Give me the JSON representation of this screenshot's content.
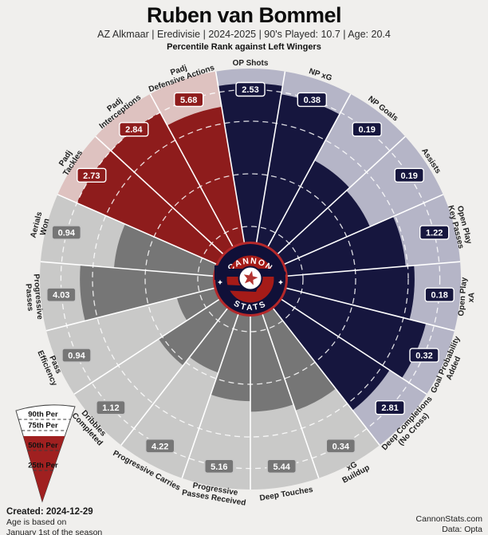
{
  "header": {
    "title": "Ruben van Bommel",
    "subtitle": "AZ Alkmaar  | Eredivisie | 2024-2025 | 90's Played: 10.7 | Age: 20.4",
    "context": "Percentile Rank against Left Wingers"
  },
  "chart_data": {
    "type": "pizza",
    "title": "Percentile Rank against Left Wingers",
    "groups": {
      "attacking": {
        "color": "#16163e",
        "light": "#b5b5c7",
        "box_border": "#ffffff"
      },
      "possession": {
        "color": "#767676",
        "light": "#c9c9c8",
        "box_border": "#c6c6c6"
      },
      "defending": {
        "color": "#8e1c1c",
        "light": "#dec2c0",
        "box_border": "#ffffff"
      }
    },
    "rings_percentiles": [
      25,
      50,
      75,
      90
    ],
    "slices": [
      {
        "label": "OP Shots",
        "value": "2.53",
        "percentile": 93,
        "group": "attacking"
      },
      {
        "label": "NP xG",
        "value": "0.38",
        "percentile": 89,
        "group": "attacking"
      },
      {
        "label": "NP Goals",
        "value": "0.19",
        "percentile": 64,
        "group": "attacking"
      },
      {
        "label": "Assists",
        "value": "0.19",
        "percentile": 62,
        "group": "attacking"
      },
      {
        "label": "Open Play\nKey Passes",
        "value": "1.22",
        "percentile": 74,
        "group": "attacking"
      },
      {
        "label": "Open Play\nxA",
        "value": "0.18",
        "percentile": 78,
        "group": "attacking"
      },
      {
        "label": "Goal Probability\nAdded",
        "value": "0.32",
        "percentile": 86,
        "group": "attacking"
      },
      {
        "label": "Deep Completions\n(No Cross)",
        "value": "2.81",
        "percentile": 79,
        "group": "attacking"
      },
      {
        "label": "xG\nBuildup",
        "value": "0.34",
        "percentile": 66,
        "group": "possession"
      },
      {
        "label": "Deep Touches",
        "value": "5.44",
        "percentile": 63,
        "group": "possession"
      },
      {
        "label": "Progressive\nPasses Received",
        "value": "5.16",
        "percentile": 58,
        "group": "possession"
      },
      {
        "label": "Progressive Carries",
        "value": "4.22",
        "percentile": 47,
        "group": "possession"
      },
      {
        "label": "Dribbles\nCompleted",
        "value": "1.12",
        "percentile": 52,
        "group": "possession"
      },
      {
        "label": "Pass\nEfficiency",
        "value": "0.94",
        "percentile": 36,
        "group": "possession"
      },
      {
        "label": "Progressive\nPasses",
        "value": "4.03",
        "percentile": 81,
        "group": "possession"
      },
      {
        "label": "Aerials\nWon",
        "value": "0.94",
        "percentile": 65,
        "group": "possession"
      },
      {
        "label": "Padj\nTackles",
        "value": "2.73",
        "percentile": 90,
        "group": "defending"
      },
      {
        "label": "Padj\nInterceptions",
        "value": "2.84",
        "percentile": 90,
        "group": "defending"
      },
      {
        "label": "Padj\nDefensive Actions",
        "value": "5.68",
        "percentile": 83,
        "group": "defending"
      }
    ],
    "center_logo": {
      "top": "CANNON",
      "bottom": "STATS"
    }
  },
  "legend": {
    "levels": [
      "90th Per",
      "75th Per",
      "50th Per",
      "25th Per"
    ],
    "sample_fill_percent": 70,
    "fill_color": "#a02020"
  },
  "footer": {
    "created": "Created: 2024-12-29",
    "note_line1": "Age is based on",
    "note_line2": "January 1st of the season",
    "site": "CannonStats.com",
    "source": "Data: Opta"
  }
}
